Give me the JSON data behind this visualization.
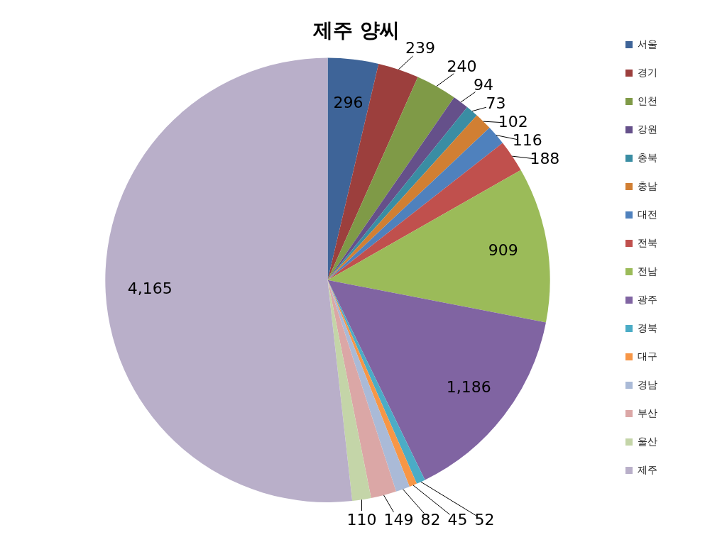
{
  "chart_data": {
    "type": "pie",
    "title": "제주 양씨",
    "categories": [
      "서울",
      "경기",
      "인천",
      "강원",
      "충북",
      "충남",
      "대전",
      "전북",
      "전남",
      "광주",
      "경북",
      "대구",
      "경남",
      "부산",
      "울산",
      "제주"
    ],
    "values": [
      296,
      239,
      240,
      94,
      73,
      102,
      116,
      188,
      909,
      1186,
      52,
      45,
      82,
      149,
      110,
      4165
    ],
    "value_labels": [
      "296",
      "239",
      "240",
      "94",
      "73",
      "102",
      "116",
      "188",
      "909",
      "1,186",
      "52",
      "45",
      "82",
      "149",
      "110",
      "4,165"
    ],
    "colors": [
      "#3e6498",
      "#9c3f3d",
      "#7f9a47",
      "#65508a",
      "#3a8da3",
      "#d17f33",
      "#4f81bd",
      "#c0504d",
      "#9bbb59",
      "#8064a2",
      "#4bacc6",
      "#f79646",
      "#aabad7",
      "#dba7a6",
      "#c4d5a8",
      "#b9afc9"
    ],
    "legend": "right"
  }
}
